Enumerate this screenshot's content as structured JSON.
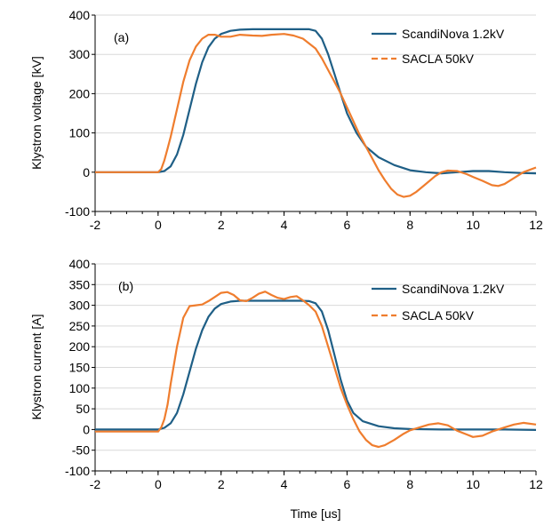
{
  "colors": {
    "series_a": "#1f5f86",
    "series_b": "#ef7d2e",
    "grid": "#d9d9d9",
    "axis": "#000000"
  },
  "chart_data": [
    {
      "type": "line",
      "panel_label": "(a)",
      "xlabel": "",
      "ylabel": "Klystron voltage [kV]",
      "xlim": [
        -2,
        12
      ],
      "ylim": [
        -100,
        400
      ],
      "xticks": [
        "-2",
        "0",
        "2",
        "4",
        "6",
        "8",
        "10",
        "12"
      ],
      "yticks": [
        "-100",
        "0",
        "100",
        "200",
        "300",
        "400"
      ],
      "grid": "horizontal",
      "legend_position": "top-right",
      "series": [
        {
          "name": "ScandiNova 1.2kV",
          "style": "solid",
          "color": "#1f5f86",
          "x": [
            -2,
            -1,
            0,
            0.2,
            0.4,
            0.6,
            0.8,
            1.0,
            1.2,
            1.4,
            1.6,
            1.8,
            2.0,
            2.3,
            2.6,
            3.0,
            3.5,
            4.0,
            4.5,
            4.8,
            5.0,
            5.2,
            5.4,
            5.6,
            5.8,
            6.0,
            6.3,
            6.6,
            7.0,
            7.5,
            8.0,
            8.5,
            9.0,
            9.5,
            10.0,
            10.5,
            11.0,
            11.5,
            12.0
          ],
          "y": [
            0,
            0,
            0,
            3,
            15,
            45,
            95,
            160,
            225,
            280,
            318,
            340,
            352,
            360,
            363,
            364,
            364,
            364,
            364,
            364,
            360,
            340,
            300,
            250,
            200,
            150,
            100,
            65,
            38,
            18,
            5,
            0,
            -3,
            0,
            3,
            3,
            0,
            -2,
            -3
          ]
        },
        {
          "name": "SACLA 50kV",
          "style": "dashed",
          "color": "#ef7d2e",
          "x": [
            -2,
            -1,
            0,
            0.1,
            0.2,
            0.3,
            0.4,
            0.6,
            0.8,
            1.0,
            1.2,
            1.4,
            1.6,
            1.8,
            2.0,
            2.3,
            2.6,
            3.0,
            3.3,
            3.6,
            4.0,
            4.3,
            4.6,
            5.0,
            5.2,
            5.4,
            5.6,
            5.8,
            6.0,
            6.2,
            6.4,
            6.6,
            6.8,
            7.0,
            7.2,
            7.4,
            7.6,
            7.8,
            8.0,
            8.2,
            8.5,
            8.8,
            9.0,
            9.2,
            9.5,
            9.8,
            10.0,
            10.3,
            10.6,
            10.8,
            11.0,
            11.3,
            11.6,
            12.0
          ],
          "y": [
            0,
            0,
            0,
            8,
            30,
            60,
            90,
            160,
            230,
            285,
            320,
            340,
            350,
            350,
            345,
            345,
            350,
            348,
            347,
            350,
            352,
            348,
            340,
            315,
            290,
            260,
            230,
            200,
            165,
            130,
            95,
            65,
            35,
            5,
            -20,
            -42,
            -57,
            -63,
            -60,
            -50,
            -30,
            -10,
            0,
            4,
            3,
            -5,
            -12,
            -22,
            -33,
            -35,
            -30,
            -15,
            0,
            12
          ]
        }
      ]
    },
    {
      "type": "line",
      "panel_label": "(b)",
      "xlabel": "Time [us]",
      "ylabel": "Klystron current [A]",
      "xlim": [
        -2,
        12
      ],
      "ylim": [
        -100,
        400
      ],
      "xticks": [
        "-2",
        "0",
        "2",
        "4",
        "6",
        "8",
        "10",
        "12"
      ],
      "yticks": [
        "-100",
        "-50",
        "0",
        "50",
        "100",
        "150",
        "200",
        "250",
        "300",
        "350",
        "400"
      ],
      "grid": "horizontal",
      "legend_position": "top-right",
      "series": [
        {
          "name": "ScandiNova 1.2kV",
          "style": "solid",
          "color": "#1f5f86",
          "x": [
            -2,
            -1,
            0,
            0.2,
            0.4,
            0.6,
            0.8,
            1.0,
            1.2,
            1.4,
            1.6,
            1.8,
            2.0,
            2.3,
            2.6,
            3.0,
            3.5,
            4.0,
            4.5,
            4.8,
            5.0,
            5.2,
            5.4,
            5.6,
            5.8,
            6.0,
            6.2,
            6.5,
            7.0,
            7.5,
            8.0,
            9.0,
            10.0,
            11.0,
            12.0
          ],
          "y": [
            0,
            0,
            0,
            4,
            15,
            40,
            85,
            140,
            195,
            240,
            272,
            292,
            303,
            309,
            311,
            311,
            311,
            311,
            311,
            310,
            305,
            285,
            240,
            180,
            120,
            70,
            40,
            20,
            8,
            3,
            1,
            0,
            0,
            0,
            -1
          ]
        },
        {
          "name": "SACLA 50kV",
          "style": "dashed",
          "color": "#ef7d2e",
          "x": [
            -2,
            -1,
            0,
            0.1,
            0.2,
            0.3,
            0.4,
            0.6,
            0.8,
            1.0,
            1.2,
            1.4,
            1.6,
            1.8,
            2.0,
            2.2,
            2.4,
            2.6,
            2.8,
            3.0,
            3.2,
            3.4,
            3.6,
            3.8,
            4.0,
            4.2,
            4.4,
            4.6,
            4.8,
            5.0,
            5.2,
            5.4,
            5.6,
            5.8,
            6.0,
            6.2,
            6.4,
            6.6,
            6.8,
            7.0,
            7.2,
            7.5,
            7.8,
            8.0,
            8.3,
            8.6,
            8.9,
            9.2,
            9.5,
            9.8,
            10.0,
            10.3,
            10.6,
            11.0,
            11.3,
            11.6,
            12.0
          ],
          "y": [
            -5,
            -5,
            -5,
            5,
            25,
            60,
            110,
            200,
            270,
            298,
            300,
            302,
            310,
            320,
            330,
            332,
            325,
            312,
            310,
            318,
            328,
            333,
            325,
            318,
            315,
            320,
            322,
            312,
            300,
            285,
            250,
            200,
            150,
            100,
            60,
            25,
            -5,
            -25,
            -38,
            -42,
            -38,
            -25,
            -10,
            -2,
            5,
            12,
            15,
            10,
            -3,
            -12,
            -18,
            -15,
            -5,
            5,
            12,
            16,
            12
          ]
        }
      ]
    }
  ]
}
